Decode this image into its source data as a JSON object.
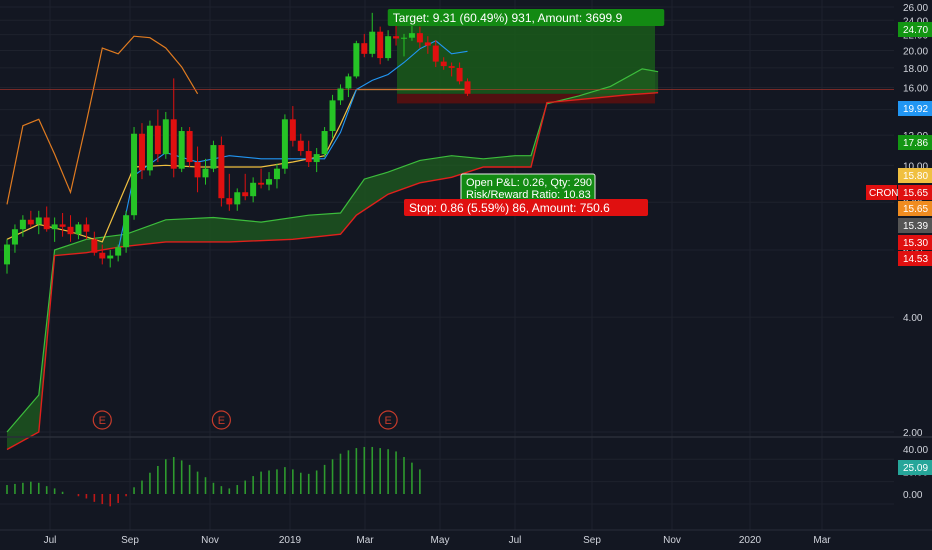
{
  "symbol": "CRON",
  "colors": {
    "background": "#131722",
    "grid": "#1e222d",
    "up": "#26c426",
    "down": "#e01010",
    "tenkan": "#2196f3",
    "kijun": "#f0c040",
    "lagging": "#e07b20",
    "span_a": "#3cbd3c",
    "span_b": "#e0201c",
    "cloud": "#1f5d1f",
    "target_zone": "#1a5a1a",
    "stop_zone": "#5a1010",
    "earnings": "#c63b2b",
    "volume": "#2e9b2e"
  },
  "price_axis": {
    "scale": "log",
    "tick_labels": [
      "26.00",
      "24.00",
      "22.00",
      "20.00",
      "18.00",
      "16.00",
      "14.00",
      "12.00",
      "10.00",
      "8.00",
      "6.00",
      "4.00",
      "2.00"
    ],
    "badges": [
      {
        "text": "24.70",
        "value": 24.7,
        "color": "#139613"
      },
      {
        "text": "19.92",
        "value": 19.92,
        "color": "#2196f3"
      },
      {
        "text": "17.86",
        "value": 17.86,
        "color": "#139613"
      },
      {
        "text": "15.80",
        "value": 15.8,
        "color": "#f0c040"
      },
      {
        "text": "15.65",
        "value": 15.65,
        "color": "#e01010"
      },
      {
        "text": "15.65",
        "value": 15.65,
        "color": "#f08c20"
      },
      {
        "text": "15.39",
        "value": 15.39,
        "color": "#555"
      },
      {
        "text": "15.30",
        "value": 15.3,
        "color": "#e01010"
      },
      {
        "text": "14.53",
        "value": 14.53,
        "color": "#e01010"
      }
    ],
    "symbol_tag": "CRON",
    "symbol_tag_price": "15.65"
  },
  "time_axis": {
    "labels": [
      "Jul",
      "Sep",
      "Nov",
      "2019",
      "Mar",
      "May",
      "Jul",
      "Sep",
      "Nov",
      "2020",
      "Mar"
    ]
  },
  "earnings_marker": "E",
  "position_tool": {
    "target_label": "Target: 9.31 (60.49%) 931, Amount: 3699.9",
    "pnl_label": "Open P&L: 0.26, Qty: 290",
    "rr_label": "Risk/Reward Ratio: 10.83",
    "stop_label": "Stop: 0.86 (5.59%) 86, Amount: 750.6",
    "entry": 15.39,
    "target": 24.7,
    "stop": 14.53
  },
  "oscillator": {
    "tick_labels": [
      "40.00",
      "20.00",
      "0.00"
    ],
    "badge": "25.09",
    "badge_color": "#26a69a"
  },
  "chart_data": {
    "type": "candlestick",
    "candles": [
      [
        5.5,
        6.4,
        5.2,
        6.2
      ],
      [
        6.2,
        7.0,
        5.9,
        6.8
      ],
      [
        6.8,
        7.4,
        6.5,
        7.2
      ],
      [
        7.2,
        7.6,
        6.9,
        7.0
      ],
      [
        7.0,
        7.6,
        6.6,
        7.3
      ],
      [
        7.3,
        7.8,
        6.7,
        6.8
      ],
      [
        6.8,
        7.3,
        6.3,
        7.0
      ],
      [
        7.0,
        7.5,
        6.5,
        6.9
      ],
      [
        6.9,
        7.4,
        6.3,
        6.6
      ],
      [
        6.6,
        7.1,
        6.4,
        7.0
      ],
      [
        7.0,
        7.3,
        6.4,
        6.7
      ],
      [
        6.4,
        6.7,
        5.8,
        5.9
      ],
      [
        5.9,
        6.2,
        5.5,
        5.7
      ],
      [
        5.7,
        6.0,
        5.4,
        5.8
      ],
      [
        5.8,
        6.2,
        5.6,
        6.1
      ],
      [
        6.1,
        7.6,
        5.9,
        7.4
      ],
      [
        7.4,
        12.6,
        7.2,
        12.1
      ],
      [
        12.1,
        12.9,
        9.2,
        9.7
      ],
      [
        9.7,
        13.1,
        9.4,
        12.7
      ],
      [
        12.7,
        14.0,
        10.2,
        10.7
      ],
      [
        10.7,
        13.8,
        10.4,
        13.2
      ],
      [
        13.2,
        16.9,
        9.3,
        9.8
      ],
      [
        9.8,
        12.6,
        9.6,
        12.3
      ],
      [
        12.3,
        12.6,
        9.9,
        10.2
      ],
      [
        10.2,
        11.2,
        8.5,
        9.3
      ],
      [
        9.3,
        10.4,
        8.9,
        9.8
      ],
      [
        9.8,
        11.6,
        9.6,
        11.3
      ],
      [
        11.3,
        11.9,
        7.8,
        8.2
      ],
      [
        8.2,
        9.5,
        7.6,
        7.9
      ],
      [
        7.9,
        8.7,
        7.6,
        8.5
      ],
      [
        8.5,
        9.5,
        8.1,
        8.3
      ],
      [
        8.3,
        9.3,
        8.0,
        9.0
      ],
      [
        9.0,
        9.8,
        8.7,
        8.9
      ],
      [
        8.9,
        9.6,
        8.6,
        9.2
      ],
      [
        9.2,
        10.1,
        8.7,
        9.8
      ],
      [
        9.8,
        13.6,
        9.5,
        13.2
      ],
      [
        13.2,
        14.3,
        11.2,
        11.6
      ],
      [
        11.6,
        12.1,
        10.6,
        10.9
      ],
      [
        10.9,
        11.6,
        9.9,
        10.2
      ],
      [
        10.2,
        11.1,
        9.6,
        10.7
      ],
      [
        10.7,
        12.6,
        10.5,
        12.3
      ],
      [
        12.3,
        15.3,
        11.8,
        14.8
      ],
      [
        14.8,
        16.3,
        14.4,
        15.9
      ],
      [
        15.9,
        17.4,
        15.1,
        17.1
      ],
      [
        17.1,
        21.2,
        16.9,
        20.9
      ],
      [
        20.9,
        22.1,
        19.2,
        19.6
      ],
      [
        19.6,
        25.1,
        19.2,
        22.4
      ],
      [
        22.4,
        23.1,
        18.4,
        19.1
      ],
      [
        19.1,
        22.6,
        18.8,
        21.8
      ],
      [
        21.8,
        23.2,
        20.6,
        21.5
      ],
      [
        21.5,
        22.1,
        19.3,
        21.6
      ],
      [
        21.6,
        24.6,
        21.2,
        22.2
      ],
      [
        22.2,
        23.1,
        20.3,
        21.0
      ],
      [
        21.0,
        21.8,
        19.6,
        20.6
      ],
      [
        20.6,
        21.3,
        18.1,
        18.7
      ],
      [
        18.7,
        19.2,
        17.8,
        18.2
      ],
      [
        18.2,
        18.6,
        17.1,
        18.0
      ],
      [
        18.0,
        18.6,
        16.3,
        16.6
      ],
      [
        16.6,
        16.9,
        15.2,
        15.4
      ]
    ],
    "tenkan": [
      [
        14,
        6.0
      ],
      [
        16,
        9.4
      ],
      [
        20,
        10.8
      ],
      [
        24,
        10.2
      ],
      [
        28,
        10.6
      ],
      [
        32,
        10.4
      ],
      [
        36,
        10.4
      ],
      [
        40,
        10.4
      ],
      [
        42,
        12.2
      ],
      [
        44,
        15.8
      ],
      [
        46,
        16.7
      ],
      [
        48,
        17.3
      ],
      [
        50,
        18.6
      ],
      [
        52,
        20.2
      ],
      [
        54,
        21.2
      ],
      [
        56,
        19.6
      ],
      [
        58,
        19.9
      ]
    ],
    "kijun": [
      [
        0,
        6.4
      ],
      [
        4,
        7.0
      ],
      [
        8,
        6.7
      ],
      [
        12,
        6.3
      ],
      [
        16,
        9.9
      ],
      [
        20,
        10.0
      ],
      [
        24,
        9.9
      ],
      [
        28,
        9.9
      ],
      [
        32,
        9.9
      ],
      [
        36,
        10.2
      ],
      [
        40,
        10.6
      ],
      [
        42,
        12.8
      ],
      [
        44,
        15.8
      ],
      [
        50,
        15.8
      ],
      [
        58,
        15.8
      ]
    ],
    "lagging": [
      [
        0,
        7.9
      ],
      [
        2,
        12.7
      ],
      [
        4,
        13.2
      ],
      [
        6,
        10.7
      ],
      [
        8,
        8.5
      ],
      [
        10,
        13.0
      ],
      [
        12,
        20.3
      ],
      [
        14,
        19.6
      ],
      [
        16,
        21.8
      ],
      [
        18,
        21.6
      ],
      [
        20,
        20.3
      ],
      [
        22,
        18.1
      ],
      [
        24,
        15.4
      ]
    ],
    "span_a": [
      [
        0,
        2.0
      ],
      [
        4,
        2.5
      ],
      [
        6,
        6.0
      ],
      [
        10,
        6.4
      ],
      [
        15,
        6.6
      ],
      [
        20,
        7.2
      ],
      [
        26,
        7.3
      ],
      [
        32,
        7.1
      ],
      [
        38,
        7.4
      ],
      [
        42,
        7.5
      ],
      [
        45,
        9.2
      ],
      [
        48,
        9.6
      ],
      [
        52,
        10.3
      ],
      [
        56,
        10.6
      ],
      [
        60,
        10.4
      ],
      [
        64,
        10.6
      ],
      [
        66,
        10.6
      ],
      [
        68,
        14.5
      ],
      [
        72,
        15.2
      ],
      [
        76,
        16.1
      ],
      [
        80,
        17.9
      ],
      [
        82,
        17.6
      ]
    ],
    "span_b": [
      [
        0,
        1.8
      ],
      [
        4,
        2.0
      ],
      [
        6,
        5.8
      ],
      [
        10,
        5.9
      ],
      [
        14,
        6.1
      ],
      [
        20,
        6.3
      ],
      [
        28,
        6.3
      ],
      [
        36,
        6.4
      ],
      [
        42,
        6.6
      ],
      [
        44,
        7.4
      ],
      [
        48,
        8.4
      ],
      [
        52,
        9.0
      ],
      [
        56,
        9.3
      ],
      [
        60,
        9.9
      ],
      [
        64,
        9.9
      ],
      [
        66,
        9.9
      ],
      [
        68,
        14.6
      ],
      [
        74,
        15.0
      ],
      [
        78,
        15.3
      ],
      [
        82,
        15.5
      ]
    ],
    "earnings_indices": [
      12,
      27,
      48
    ],
    "oscillator_values": [
      8,
      9,
      10,
      11,
      10,
      7,
      5,
      2,
      0,
      -2,
      -4,
      -7,
      -9,
      -11,
      -8,
      -2,
      6,
      12,
      19,
      25,
      31,
      33,
      30,
      26,
      20,
      15,
      10,
      7,
      5,
      8,
      12,
      16,
      20,
      21,
      22,
      24,
      22,
      19,
      18,
      21,
      26,
      31,
      36,
      39,
      41,
      42,
      42,
      41,
      40,
      38,
      33,
      28,
      22
    ]
  }
}
